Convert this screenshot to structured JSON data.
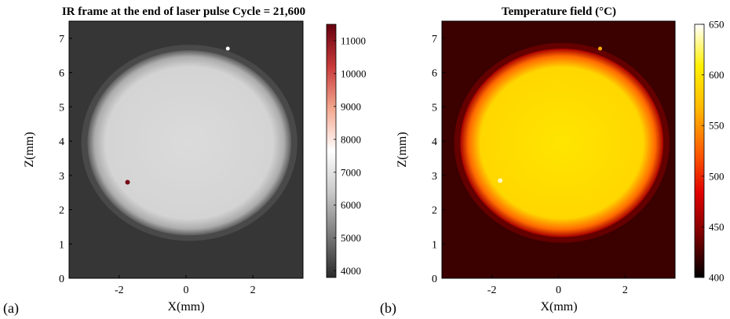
{
  "chart_data": [
    {
      "type": "heatmap",
      "panel_label": "(a)",
      "title": "IR frame at the end of laser pulse Cycle = 21,600",
      "xlabel": "X(mm)",
      "ylabel": "Z(mm)",
      "xlim": [
        -3.5,
        3.5
      ],
      "ylim": [
        0,
        7.5
      ],
      "xticks": [
        -2,
        0,
        2
      ],
      "yticks": [
        0,
        1,
        2,
        3,
        4,
        5,
        6,
        7
      ],
      "colorbar": {
        "min": 3800,
        "max": 11500,
        "ticks": [
          4000,
          5000,
          6000,
          7000,
          8000,
          9000,
          10000,
          11000
        ]
      },
      "colormap": [
        "#2a2a2a",
        "#7a7a7a",
        "#c8c8c8",
        "#ffffff",
        "#f4a890",
        "#c83a3a",
        "#66000e"
      ],
      "background_value": 4000,
      "spot": {
        "center_x": 0.1,
        "center_z": 3.95,
        "radius_x": 3.05,
        "radius_z": 2.7,
        "value": 6800
      },
      "hotspots": [
        {
          "x": -1.75,
          "z": 2.8,
          "value": 11300
        },
        {
          "x": 1.25,
          "z": 6.7,
          "value": 7600
        }
      ]
    },
    {
      "type": "heatmap",
      "panel_label": "(b)",
      "title": "Temperature field (°C)",
      "xlabel": "X(mm)",
      "ylabel": "Z(mm)",
      "xlim": [
        -3.5,
        3.5
      ],
      "ylim": [
        0,
        7.5
      ],
      "xticks": [
        -2,
        0,
        2
      ],
      "yticks": [
        0,
        1,
        2,
        3,
        4,
        5,
        6,
        7
      ],
      "colorbar": {
        "min": 400,
        "max": 650,
        "ticks": [
          400,
          450,
          500,
          550,
          600,
          650
        ]
      },
      "colormap": [
        "#000000",
        "#7a0000",
        "#e00000",
        "#ff6000",
        "#ffb800",
        "#fff000",
        "#ffffff"
      ],
      "background_value": 420,
      "spot": {
        "center_x": 0.1,
        "center_z": 3.95,
        "radius_x": 3.05,
        "radius_z": 2.75,
        "value": 600
      },
      "hotspots": [
        {
          "x": -1.75,
          "z": 2.85,
          "value": 640
        },
        {
          "x": 1.25,
          "z": 6.7,
          "value": 560
        }
      ]
    }
  ]
}
